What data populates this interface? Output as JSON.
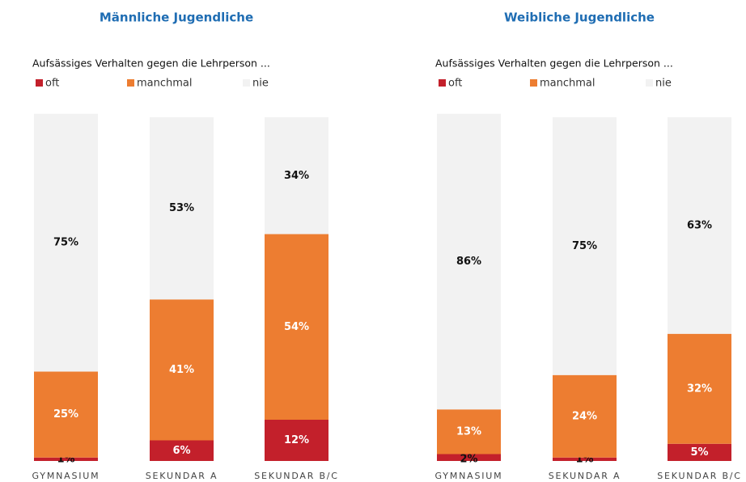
{
  "chart_data": [
    {
      "type": "stacked_bar",
      "title": "Männliche Jugendliche",
      "subtitle": "Aufsässiges Verhalten gegen die Lehrperson ...",
      "categories": [
        "GYMNASIUM",
        "SEKUNDAR A",
        "SEKUNDAR B/C"
      ],
      "ylim": [
        0,
        100
      ],
      "series": [
        {
          "name": "oft",
          "color": "#c3202b",
          "values": [
            1,
            6,
            12
          ],
          "value_labels": [
            "1%",
            "6%",
            "12%"
          ]
        },
        {
          "name": "manchmal",
          "color": "#ed7d31",
          "values": [
            25,
            41,
            54
          ],
          "value_labels": [
            "25%",
            "41%",
            "54%"
          ]
        },
        {
          "name": "nie",
          "color": "#f2f2f2",
          "values": [
            75,
            53,
            34
          ],
          "value_labels": [
            "75%",
            "53%",
            "34%"
          ]
        }
      ]
    },
    {
      "type": "stacked_bar",
      "title": "Weibliche Jugendliche",
      "subtitle": "Aufsässiges Verhalten gegen die Lehrperson ...",
      "categories": [
        "GYMNASIUM",
        "SEKUNDAR A",
        "SEKUNDAR B/C"
      ],
      "ylim": [
        0,
        100
      ],
      "series": [
        {
          "name": "oft",
          "color": "#c3202b",
          "values": [
            2,
            1,
            5
          ],
          "value_labels": [
            "2%",
            "1%",
            "5%"
          ]
        },
        {
          "name": "manchmal",
          "color": "#ed7d31",
          "values": [
            13,
            24,
            32
          ],
          "value_labels": [
            "13%",
            "24%",
            "32%"
          ]
        },
        {
          "name": "nie",
          "color": "#f2f2f2",
          "values": [
            86,
            75,
            63
          ],
          "value_labels": [
            "86%",
            "75%",
            "63%"
          ]
        }
      ]
    }
  ]
}
